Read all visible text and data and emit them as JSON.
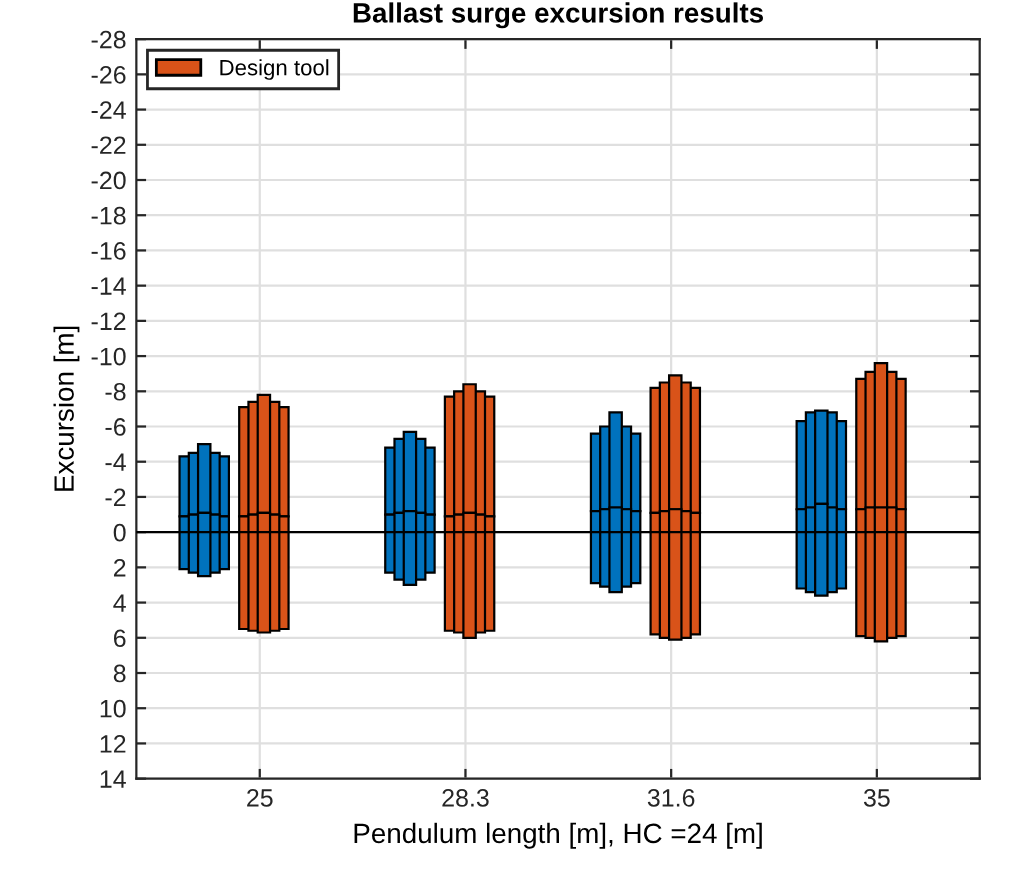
{
  "chart_data": {
    "type": "bar",
    "title": "Ballast surge excursion results",
    "xlabel": "Pendulum length [m], HC =24 [m]",
    "ylabel": "Excursion [m]",
    "categories": [
      "25",
      "28.3",
      "31.6",
      "35"
    ],
    "ylim": [
      14,
      -28
    ],
    "yticks": [
      -28,
      -26,
      -24,
      -22,
      -20,
      -18,
      -16,
      -14,
      -12,
      -10,
      -8,
      -6,
      -4,
      -2,
      0,
      2,
      4,
      6,
      8,
      10,
      12,
      14
    ],
    "grid": true,
    "legend": "top left",
    "ref_lines": [
      {
        "axis": "y",
        "value": 0,
        "color": "#000000"
      }
    ],
    "series": [
      {
        "color": "#0072bd",
        "base": [
          -4.3,
          -4.8,
          -5.6,
          -6.3
        ],
        "values": [
          3.4,
          3.8,
          4.4,
          5.0
        ]
      },
      {
        "color": "#0072bd",
        "base": [
          -0.9,
          -1.0,
          -1.2,
          -1.3
        ],
        "values": [
          3.0,
          3.3,
          4.1,
          4.5
        ]
      },
      {
        "color": "#0072bd",
        "base": [
          -4.5,
          -5.3,
          -6.0,
          -6.8
        ],
        "values": [
          3.5,
          4.2,
          4.7,
          5.4
        ]
      },
      {
        "color": "#0072bd",
        "base": [
          -1.0,
          -1.1,
          -1.3,
          -1.4
        ],
        "values": [
          3.3,
          3.8,
          4.4,
          4.8
        ]
      },
      {
        "color": "#0072bd",
        "base": [
          -5.0,
          -5.7,
          -6.8,
          -6.9
        ],
        "values": [
          3.9,
          4.5,
          5.4,
          5.3
        ]
      },
      {
        "color": "#0072bd",
        "base": [
          -1.1,
          -1.2,
          -1.4,
          -1.6
        ],
        "values": [
          3.6,
          4.2,
          4.8,
          5.2
        ]
      },
      {
        "color": "#0072bd",
        "base": [
          -4.5,
          -5.3,
          -6.0,
          -6.8
        ],
        "values": [
          3.5,
          4.2,
          4.7,
          5.4
        ]
      },
      {
        "color": "#0072bd",
        "base": [
          -1.0,
          -1.1,
          -1.3,
          -1.4
        ],
        "values": [
          3.3,
          3.8,
          4.4,
          4.8
        ]
      },
      {
        "color": "#0072bd",
        "base": [
          -4.3,
          -4.8,
          -5.6,
          -6.3
        ],
        "values": [
          3.4,
          3.8,
          4.4,
          5.0
        ]
      },
      {
        "color": "#0072bd",
        "base": [
          -0.9,
          -1.0,
          -1.2,
          -1.3
        ],
        "values": [
          3.0,
          3.3,
          4.1,
          4.5
        ]
      },
      {
        "name": "Design tool",
        "color": "#d95319",
        "base": [
          -7.1,
          -7.7,
          -8.2,
          -8.7
        ],
        "values": [
          6.2,
          6.8,
          7.1,
          7.4
        ]
      },
      {
        "color": "#d95319",
        "base": [
          -0.9,
          -0.9,
          -1.1,
          -1.3
        ],
        "values": [
          6.4,
          6.5,
          6.9,
          7.2
        ]
      },
      {
        "color": "#d95319",
        "base": [
          -7.4,
          -8.0,
          -8.5,
          -9.1
        ],
        "values": [
          6.4,
          7.0,
          7.3,
          7.7
        ]
      },
      {
        "color": "#d95319",
        "base": [
          -1.0,
          -1.0,
          -1.2,
          -1.4
        ],
        "values": [
          6.6,
          6.7,
          7.2,
          7.4
        ]
      },
      {
        "color": "#d95319",
        "base": [
          -7.8,
          -8.4,
          -8.9,
          -9.6
        ],
        "values": [
          6.7,
          7.3,
          7.6,
          8.2
        ]
      },
      {
        "color": "#d95319",
        "base": [
          -1.1,
          -1.1,
          -1.3,
          -1.4
        ],
        "values": [
          6.8,
          7.1,
          7.4,
          7.6
        ]
      },
      {
        "color": "#d95319",
        "base": [
          -7.4,
          -8.0,
          -8.5,
          -9.1
        ],
        "values": [
          6.4,
          7.0,
          7.3,
          7.7
        ]
      },
      {
        "color": "#d95319",
        "base": [
          -1.0,
          -1.0,
          -1.2,
          -1.4
        ],
        "values": [
          6.6,
          6.7,
          7.2,
          7.4
        ]
      },
      {
        "color": "#d95319",
        "base": [
          -7.1,
          -7.7,
          -8.2,
          -8.7
        ],
        "values": [
          6.2,
          6.8,
          7.1,
          7.4
        ]
      },
      {
        "color": "#d95319",
        "base": [
          -0.9,
          -0.9,
          -1.1,
          -1.3
        ],
        "values": [
          6.4,
          6.5,
          6.9,
          7.2
        ]
      }
    ]
  }
}
